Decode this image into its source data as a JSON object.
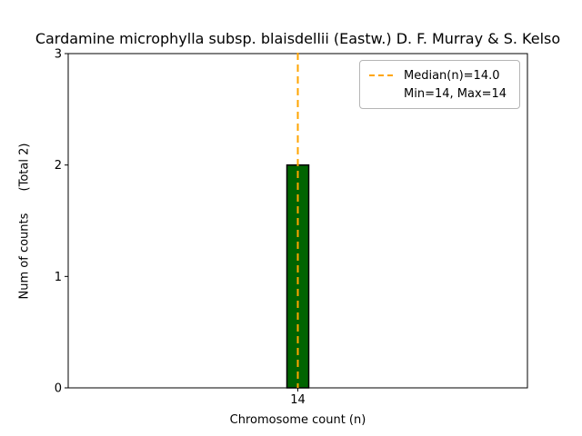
{
  "chart_data": {
    "type": "bar",
    "title": "Cardamine microphylla subsp. blaisdellii (Eastw.) D. F. Murray & S. Kelso",
    "xlabel": "Chromosome count (n)",
    "ylabel": "Num of counts",
    "ylabel_total": "(Total 2)",
    "categories": [
      "14"
    ],
    "values": [
      2
    ],
    "ylim": [
      0,
      3
    ],
    "yticks": [
      0,
      1,
      2,
      3
    ],
    "grid": false,
    "bar_color": "#006400",
    "bar_edge_color": "#000000",
    "median_line": {
      "x": "14",
      "value": 14.0,
      "color": "#FFA500",
      "style": "dashed"
    },
    "legend": {
      "position": "upper right",
      "entries": [
        {
          "sample": "dashed-line",
          "label": "Median(n)=14.0"
        },
        {
          "sample": "none",
          "label": "Min=14, Max=14"
        }
      ]
    }
  }
}
